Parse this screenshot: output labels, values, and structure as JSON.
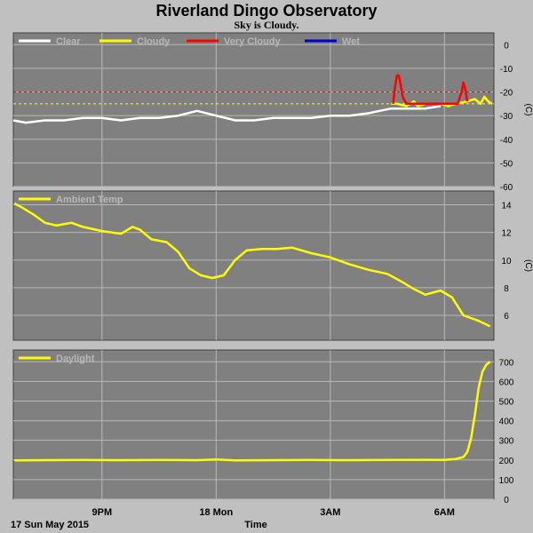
{
  "header": {
    "title": "Riverland Dingo Observatory",
    "subtitle": "Sky is Cloudy."
  },
  "footer": {
    "date_label": "17 Sun May 2015",
    "x_axis_title": "Time"
  },
  "colors": {
    "background": "#c0c0c0",
    "panel": "#808080",
    "grid": "#b8b8b8",
    "clear": "#ffffff",
    "cloudy": "#ffff00",
    "very_cloudy": "#ff0000",
    "wet": "#0000cc"
  },
  "chart_data": [
    {
      "type": "line",
      "panel": "sky",
      "ylabel": "(C)",
      "ylim": [
        -60,
        5
      ],
      "yticks": [
        0,
        -10,
        -20,
        -30,
        -40,
        -50,
        -60
      ],
      "xlim": [
        18.67,
        31.3
      ],
      "xticks": [
        {
          "value": 21,
          "label": "9PM"
        },
        {
          "value": 24,
          "label": "18 Mon"
        },
        {
          "value": 27,
          "label": "3AM"
        },
        {
          "value": 30,
          "label": "6AM"
        }
      ],
      "grid": true,
      "legend_position": "top-left",
      "legend": [
        {
          "name": "Clear",
          "color": "#ffffff"
        },
        {
          "name": "Cloudy",
          "color": "#ffff00"
        },
        {
          "name": "Very Cloudy",
          "color": "#ff0000"
        },
        {
          "name": "Wet",
          "color": "#0000cc"
        }
      ],
      "thresholds": [
        {
          "value": -20,
          "color": "#ff0000"
        },
        {
          "value": -25,
          "color": "#ffff00"
        }
      ],
      "series": [
        {
          "name": "Clear",
          "color": "#ffffff",
          "x": [
            18.67,
            19.0,
            19.5,
            20.0,
            20.5,
            21.0,
            21.5,
            22.0,
            22.5,
            23.0,
            23.5,
            24.0,
            24.5,
            25.0,
            25.5,
            26.0,
            26.5,
            27.0,
            27.5,
            28.0,
            28.3,
            28.6,
            28.9,
            29.2,
            29.5,
            29.9
          ],
          "y": [
            -32,
            -33,
            -32,
            -32,
            -31,
            -31,
            -32,
            -31,
            -31,
            -30,
            -28,
            -30,
            -32,
            -32,
            -31,
            -31,
            -31,
            -30,
            -30,
            -29,
            -28,
            -27,
            -27,
            -27,
            -27,
            -26
          ]
        },
        {
          "name": "Cloudy",
          "color": "#ffff00",
          "x": [
            28.6,
            28.75,
            29.0,
            29.2,
            29.3,
            29.5,
            29.9,
            30.1,
            30.3,
            30.6,
            30.8,
            30.95,
            31.05,
            31.15,
            31.25
          ],
          "y": [
            -25,
            -25,
            -26,
            -24,
            -26,
            -25,
            -25,
            -26,
            -25,
            -24,
            -23,
            -25,
            -22,
            -24,
            -25
          ]
        },
        {
          "name": "Very Cloudy",
          "color": "#ff0000",
          "x": [
            28.65,
            28.7,
            28.75,
            28.8,
            28.85,
            28.9,
            29.0,
            30.35,
            30.45,
            30.5,
            30.55,
            30.6
          ],
          "y": [
            -25,
            -18,
            -13,
            -13,
            -17,
            -22,
            -25,
            -25,
            -20,
            -16,
            -19,
            -24
          ]
        },
        {
          "name": "Wet",
          "color": "#0000cc",
          "x": [],
          "y": []
        }
      ]
    },
    {
      "type": "line",
      "panel": "ambient",
      "ylabel": "(C)",
      "ylim": [
        4.2,
        15
      ],
      "yticks": [
        14,
        12,
        10,
        8,
        6
      ],
      "xlim": [
        18.67,
        31.3
      ],
      "grid": true,
      "legend_position": "top-left",
      "legend": [
        {
          "name": "Ambient Temp",
          "color": "#ffff00"
        }
      ],
      "series": [
        {
          "name": "Ambient Temp",
          "color": "#ffff00",
          "x": [
            18.7,
            18.9,
            19.2,
            19.5,
            19.8,
            20.2,
            20.5,
            21.0,
            21.5,
            21.8,
            22.0,
            22.3,
            22.7,
            23.0,
            23.3,
            23.6,
            23.9,
            24.2,
            24.5,
            24.8,
            25.2,
            25.6,
            26.0,
            26.5,
            27.0,
            27.5,
            28.0,
            28.5,
            28.9,
            29.2,
            29.5,
            29.9,
            30.2,
            30.5,
            30.9,
            31.2
          ],
          "y": [
            14.1,
            13.8,
            13.3,
            12.7,
            12.5,
            12.7,
            12.4,
            12.1,
            11.9,
            12.4,
            12.2,
            11.5,
            11.3,
            10.6,
            9.4,
            8.9,
            8.7,
            8.9,
            10.0,
            10.7,
            10.8,
            10.8,
            10.9,
            10.5,
            10.2,
            9.7,
            9.3,
            9.0,
            8.4,
            7.9,
            7.5,
            7.8,
            7.3,
            6.0,
            5.6,
            5.2
          ]
        }
      ]
    },
    {
      "type": "line",
      "panel": "daylight",
      "ylabel": "",
      "ylim": [
        0,
        760
      ],
      "yticks": [
        0,
        100,
        200,
        300,
        400,
        500,
        600,
        700
      ],
      "xlim": [
        18.67,
        31.3
      ],
      "grid": true,
      "legend_position": "top-left",
      "legend": [
        {
          "name": "Daylight",
          "color": "#ffff00"
        }
      ],
      "series": [
        {
          "name": "Daylight",
          "color": "#ffff00",
          "x": [
            18.7,
            19.5,
            20.5,
            21.5,
            22.5,
            23.5,
            24.0,
            24.5,
            25.5,
            26.5,
            27.5,
            28.5,
            29.5,
            30.0,
            30.3,
            30.5,
            30.6,
            30.7,
            30.8,
            30.9,
            31.0,
            31.1,
            31.2
          ],
          "y": [
            198,
            199,
            200,
            199,
            200,
            199,
            202,
            198,
            199,
            200,
            199,
            200,
            201,
            200,
            205,
            215,
            240,
            310,
            430,
            570,
            650,
            685,
            700
          ]
        }
      ]
    }
  ]
}
